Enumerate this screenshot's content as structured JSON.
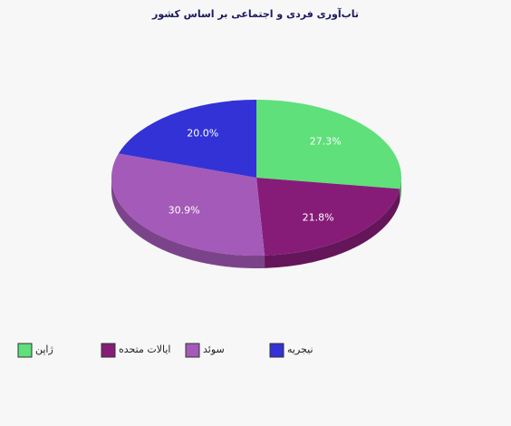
{
  "chart_data": {
    "type": "pie",
    "title": "تاب‌آوری فردی و اجتماعی بر اساس کشور",
    "categories": [
      "ژاپن",
      "ایالات متحده",
      "سوئد",
      "نیجریه"
    ],
    "values": [
      27.3,
      21.8,
      30.9,
      20.0
    ],
    "value_labels": [
      "27.3%",
      "21.8%",
      "30.9%",
      "20.0%"
    ],
    "colors": [
      "#5fe07a",
      "#861c78",
      "#a45ab8",
      "#3232d6"
    ]
  }
}
